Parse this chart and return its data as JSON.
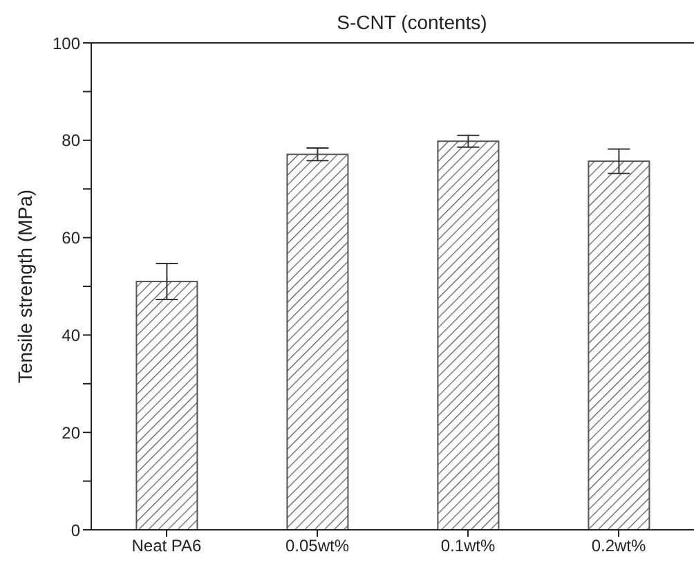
{
  "chart_data": {
    "type": "bar",
    "title": "S-CNT (contents)",
    "ylabel": "Tensile strength (MPa)",
    "categories": [
      "Neat PA6",
      "0.05wt%",
      "0.1wt%",
      "0.2wt%"
    ],
    "values": [
      51,
      77.1,
      79.8,
      75.7
    ],
    "errors": [
      3.7,
      1.3,
      1.2,
      2.5
    ],
    "color": "#555555",
    "ylim": [
      0,
      100
    ],
    "yticks": [
      0,
      {
        "value": 10,
        "label": null
      },
      20,
      {
        "value": 30,
        "label": null
      },
      40,
      {
        "value": 50,
        "label": null
      },
      60,
      {
        "value": 70,
        "label": null
      },
      80,
      {
        "value": 90,
        "label": null
      },
      100
    ],
    "grid": false,
    "legend": false
  }
}
